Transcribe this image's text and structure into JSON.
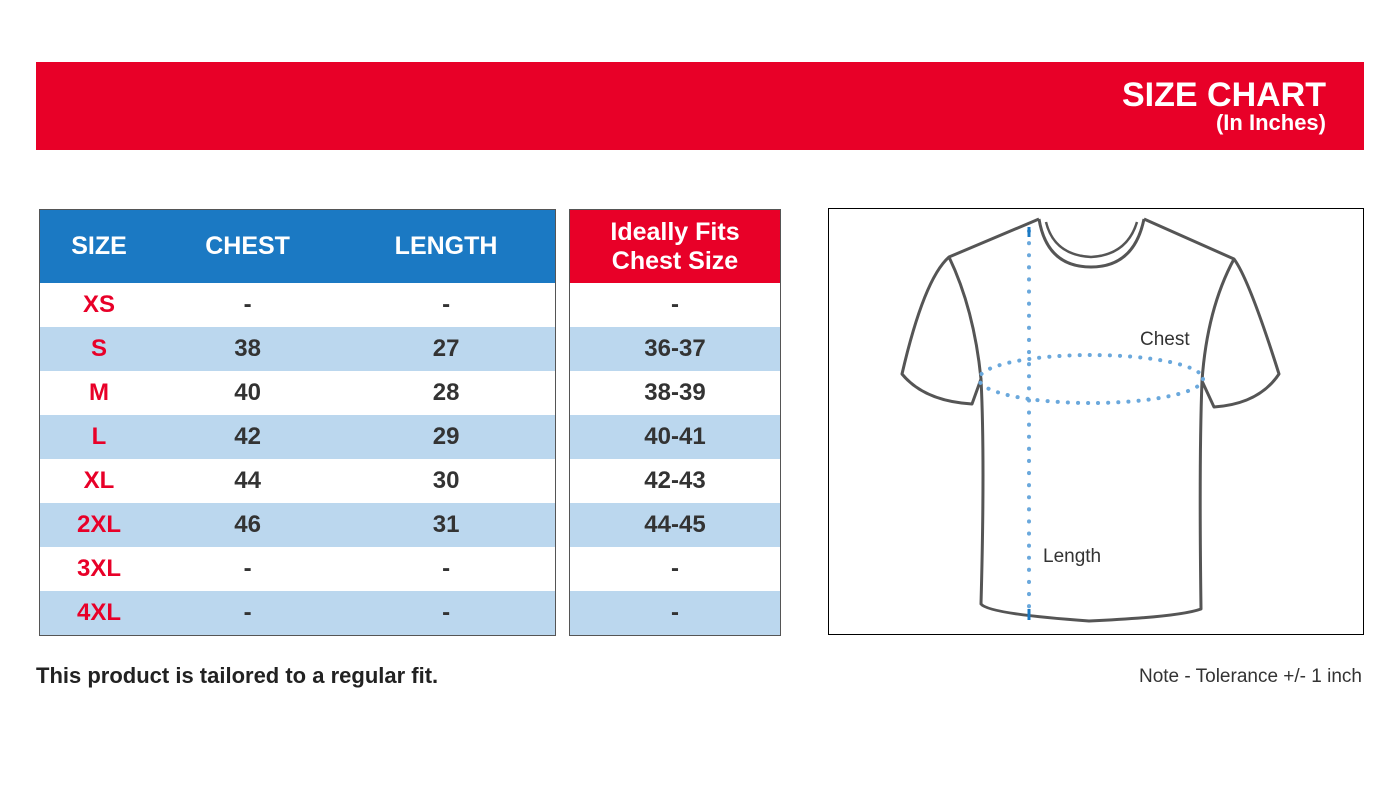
{
  "header": {
    "title": "SIZE CHART",
    "subtitle": "(In Inches)"
  },
  "size_table": {
    "headers": [
      "SIZE",
      "CHEST",
      "LENGTH"
    ],
    "rows": [
      [
        "XS",
        "-",
        "-"
      ],
      [
        "S",
        "38",
        "27"
      ],
      [
        "M",
        "40",
        "28"
      ],
      [
        "L",
        "42",
        "29"
      ],
      [
        "XL",
        "44",
        "30"
      ],
      [
        "2XL",
        "46",
        "31"
      ],
      [
        "3XL",
        "-",
        "-"
      ],
      [
        "4XL",
        "-",
        "-"
      ]
    ]
  },
  "fit_table": {
    "header_line1": "Ideally Fits",
    "header_line2": "Chest Size",
    "rows": [
      "-",
      "36-37",
      "38-39",
      "40-41",
      "42-43",
      "44-45",
      "-",
      "-"
    ]
  },
  "diagram": {
    "chest_label": "Chest",
    "length_label": "Length"
  },
  "footer": {
    "fit_note": "This product is tailored to a regular fit.",
    "tolerance_note": "Note - Tolerance +/- 1 inch"
  },
  "colors": {
    "brand_red": "#e80028",
    "header_blue": "#1b79c3",
    "row_alt": "#bbd7ee",
    "measure_dots": "#6aa8dc"
  }
}
